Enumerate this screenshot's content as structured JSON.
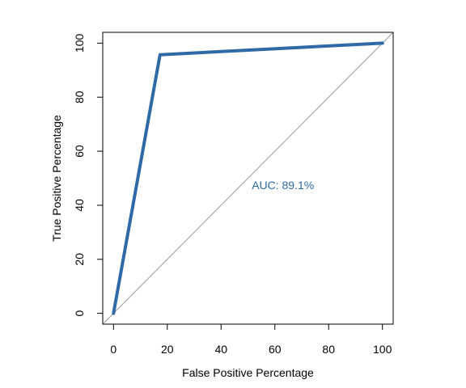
{
  "chart_data": {
    "type": "line",
    "xlabel": "False Positive Percentage",
    "ylabel": "True Positive Percentage",
    "xlim": [
      -4,
      104
    ],
    "ylim": [
      -4,
      104
    ],
    "xticks": [
      0,
      20,
      40,
      60,
      80,
      100
    ],
    "yticks": [
      0,
      20,
      40,
      60,
      80,
      100
    ],
    "grid": false,
    "series": [
      {
        "color": "#2f6aa6",
        "x": [
          0,
          17.3,
          100
        ],
        "y": [
          0,
          95.7,
          100
        ]
      }
    ],
    "reference_line": {
      "x": [
        -4,
        104
      ],
      "y": [
        -4,
        104
      ],
      "color": "#9a9a9a"
    },
    "annotation": {
      "text": "AUC: 89.1%",
      "x": 63,
      "y": 47,
      "color": "#2f6aa6"
    }
  }
}
